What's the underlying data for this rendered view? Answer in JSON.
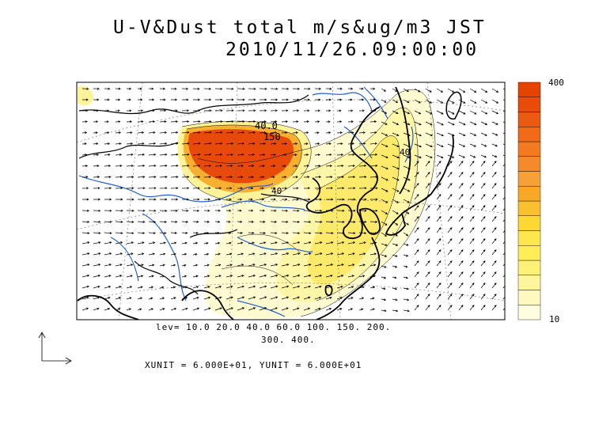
{
  "title": {
    "line1": "U-V&Dust total m/s&ug/m3 JST",
    "line2": "2010/11/26.09:00:00"
  },
  "legend": {
    "levels_line1": "lev= 10.0 20.0 40.0 60.0 100. 150. 200.",
    "levels_line2": "300. 400.",
    "units": "XUNIT = 6.000E+01, YUNIT = 6.000E+01",
    "colorbar_max": "400",
    "colorbar_min": "10"
  },
  "contour_labels": [
    "40.0",
    "150",
    "40",
    "40"
  ],
  "colors": {
    "colorbar": [
      "#fffde0",
      "#fff9c0",
      "#fff59d",
      "#fff176",
      "#ffee58",
      "#fde74c",
      "#fdd835",
      "#fbc02d",
      "#f9a825",
      "#f7a035",
      "#f58a2a",
      "#f47a20",
      "#f06a18",
      "#eb5a10",
      "#e84c08",
      "#e54300"
    ],
    "rivers": "#1e5fd4",
    "coast": "#000000"
  }
}
